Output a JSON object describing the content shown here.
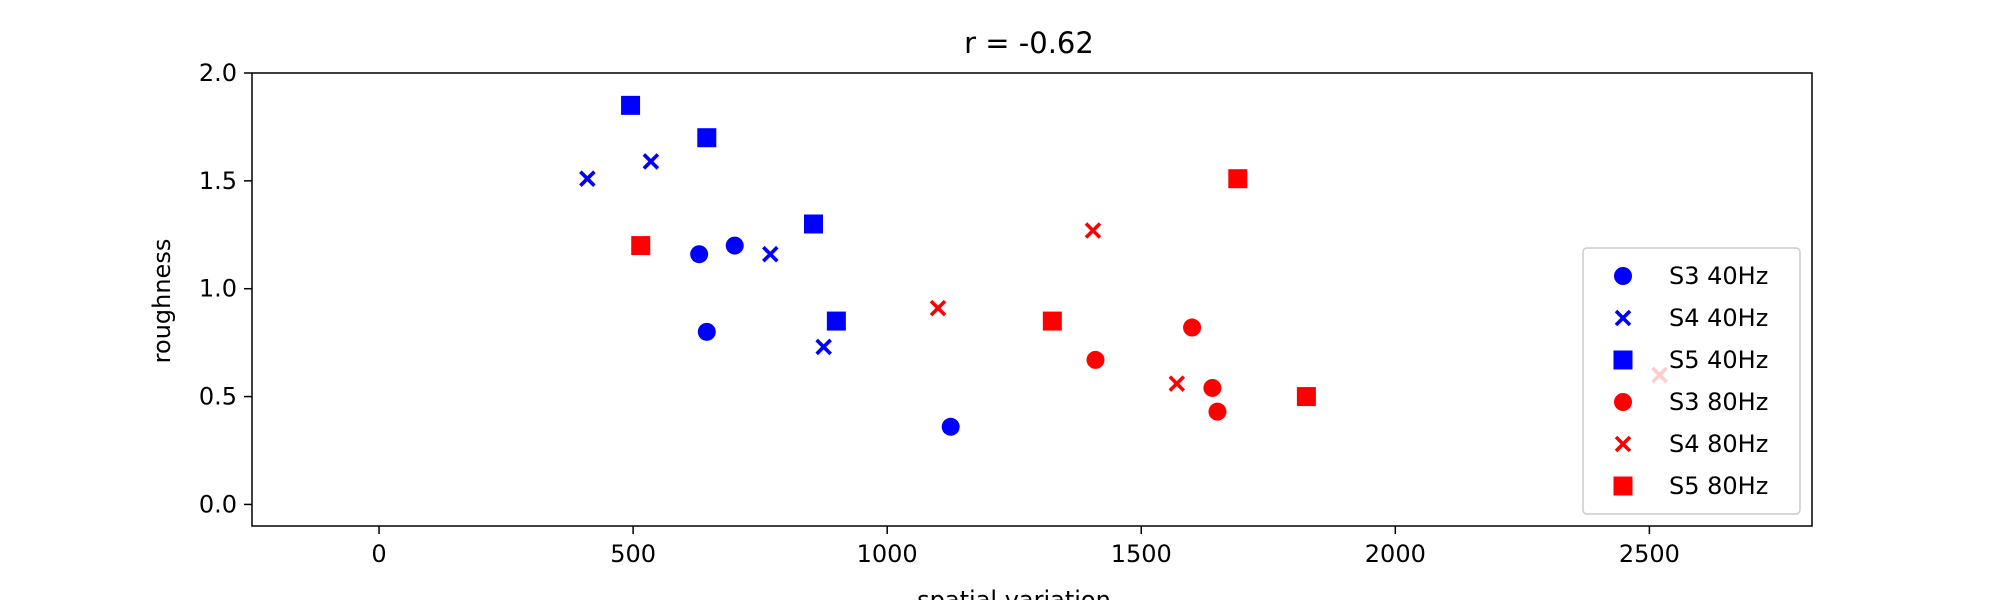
{
  "chart_data": {
    "type": "scatter",
    "title": "r = -0.62",
    "xlabel": "spatial variation",
    "ylabel": "roughness",
    "xlim": [
      -250,
      2820
    ],
    "ylim": [
      -0.1,
      2.0
    ],
    "xticks": [
      0,
      500,
      1000,
      1500,
      2000,
      2500
    ],
    "yticks": [
      0.0,
      0.5,
      1.0,
      1.5,
      2.0
    ],
    "xtick_labels": [
      "0",
      "500",
      "1000",
      "1500",
      "2000",
      "2500"
    ],
    "ytick_labels": [
      "0.0",
      "0.5",
      "1.0",
      "1.5",
      "2.0"
    ],
    "grid": false,
    "legend_position": "lower-right",
    "series": [
      {
        "name": "S3 40Hz",
        "marker": "circle",
        "color": "#0000ff",
        "points": [
          [
            630,
            1.16
          ],
          [
            700,
            1.2
          ],
          [
            645,
            0.8
          ],
          [
            1125,
            0.36
          ]
        ]
      },
      {
        "name": "S4 40Hz",
        "marker": "x",
        "color": "#0000ff",
        "points": [
          [
            410,
            1.51
          ],
          [
            535,
            1.59
          ],
          [
            770,
            1.16
          ],
          [
            875,
            0.73
          ]
        ]
      },
      {
        "name": "S5 40Hz",
        "marker": "square",
        "color": "#0000ff",
        "points": [
          [
            495,
            1.85
          ],
          [
            645,
            1.7
          ],
          [
            855,
            1.3
          ],
          [
            900,
            0.85
          ]
        ]
      },
      {
        "name": "S3 80Hz",
        "marker": "circle",
        "color": "#ff0000",
        "points": [
          [
            1410,
            0.67
          ],
          [
            1600,
            0.82
          ],
          [
            1640,
            0.54
          ],
          [
            1650,
            0.43
          ]
        ]
      },
      {
        "name": "S4 80Hz",
        "marker": "x",
        "color": "#ff0000",
        "points": [
          [
            1100,
            0.91
          ],
          [
            1405,
            1.27
          ],
          [
            1570,
            0.56
          ],
          [
            2520,
            0.6
          ]
        ]
      },
      {
        "name": "S5 80Hz",
        "marker": "square",
        "color": "#ff0000",
        "points": [
          [
            515,
            1.2
          ],
          [
            1325,
            0.85
          ],
          [
            1690,
            1.51
          ],
          [
            1825,
            0.5
          ]
        ]
      }
    ]
  }
}
